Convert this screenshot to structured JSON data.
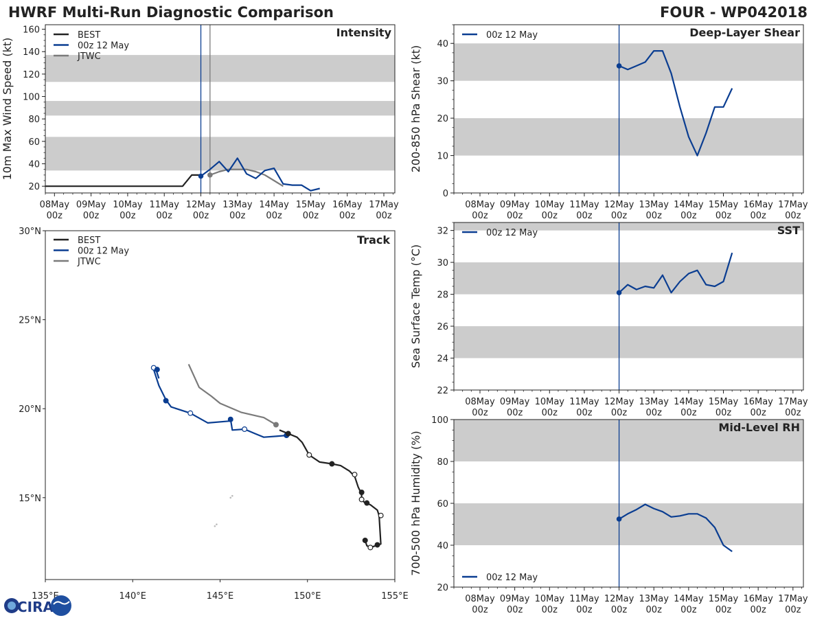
{
  "header": {
    "title": "HWRF Multi-Run Diagnostic Comparison",
    "storm": "FOUR - WP042018"
  },
  "colors": {
    "best": "#222222",
    "run": "#0a3d91",
    "jtwc": "#7a7a7a",
    "band": "#cccccc",
    "land": "#bbbbbb"
  },
  "time_axis": {
    "ticks": [
      {
        "day": "08May",
        "hour": "00z"
      },
      {
        "day": "09May",
        "hour": "00z"
      },
      {
        "day": "10May",
        "hour": "00z"
      },
      {
        "day": "11May",
        "hour": "00z"
      },
      {
        "day": "12May",
        "hour": "00z"
      },
      {
        "day": "13May",
        "hour": "00z"
      },
      {
        "day": "14May",
        "hour": "00z"
      },
      {
        "day": "15May",
        "hour": "00z"
      },
      {
        "day": "16May",
        "hour": "00z"
      },
      {
        "day": "17May",
        "hour": "00z"
      }
    ]
  },
  "legend_labels": {
    "best": "BEST",
    "run": "00z 12 May",
    "jtwc": "JTWC"
  },
  "logo": {
    "text": "CIRA"
  },
  "chart_data": [
    {
      "id": "intensity",
      "type": "line",
      "title": "Intensity",
      "ylabel": "10m Max Wind Speed (kt)",
      "xlabel": "",
      "xlim": [
        -0.25,
        9.3
      ],
      "ylim": [
        14,
        164
      ],
      "yticks": [
        20,
        40,
        60,
        80,
        100,
        120,
        140,
        160
      ],
      "bands": [
        [
          34,
          64
        ],
        [
          83,
          96
        ],
        [
          113,
          137
        ]
      ],
      "vlines": [
        {
          "x": 4.0,
          "series": "run"
        },
        {
          "x": 4.25,
          "series": "jtwc"
        }
      ],
      "legend": [
        "best",
        "run",
        "jtwc"
      ],
      "series": [
        {
          "name": "BEST",
          "key": "best",
          "x": [
            -0.25,
            0,
            0.25,
            0.5,
            0.75,
            1,
            1.25,
            1.5,
            1.75,
            2,
            2.25,
            2.5,
            2.75,
            3,
            3.25,
            3.5,
            3.75,
            4.0
          ],
          "y": [
            20,
            20,
            20,
            20,
            20,
            20,
            20,
            20,
            20,
            20,
            20,
            20,
            20,
            20,
            20,
            20,
            30,
            30
          ]
        },
        {
          "name": "JTWC",
          "key": "jtwc",
          "x": [
            4.25,
            4.5,
            4.75,
            5.0,
            5.25,
            5.5,
            5.75,
            6.0,
            6.25
          ],
          "y": [
            30,
            33,
            35,
            35,
            35,
            33,
            30,
            25,
            20
          ]
        },
        {
          "name": "00z 12 May",
          "key": "run",
          "x": [
            4.0,
            4.25,
            4.5,
            4.75,
            5.0,
            5.25,
            5.5,
            5.75,
            6.0,
            6.25,
            6.5,
            6.75,
            7.0,
            7.25
          ],
          "y": [
            29,
            35,
            42,
            33,
            45,
            31,
            27,
            34,
            36,
            22,
            21,
            21,
            16,
            18
          ]
        }
      ]
    },
    {
      "id": "shear",
      "type": "line",
      "title": "Deep-Layer Shear",
      "ylabel": "200-850 hPa Shear (kt)",
      "xlabel": "",
      "xlim": [
        -0.75,
        9.3
      ],
      "ylim": [
        0,
        45
      ],
      "yticks": [
        0,
        10,
        20,
        30,
        40
      ],
      "bands": [
        [
          10,
          20
        ],
        [
          30,
          40
        ]
      ],
      "vlines": [
        {
          "x": 4.0,
          "series": "run"
        }
      ],
      "legend": [
        "run"
      ],
      "series": [
        {
          "name": "00z 12 May",
          "key": "run",
          "x": [
            4.0,
            4.25,
            4.5,
            4.75,
            5.0,
            5.25,
            5.5,
            5.75,
            6.0,
            6.25,
            6.5,
            6.75,
            7.0,
            7.25
          ],
          "y": [
            34,
            33,
            34,
            35,
            38,
            38,
            32,
            23,
            15,
            10,
            16,
            23,
            23,
            28
          ]
        }
      ]
    },
    {
      "id": "sst",
      "type": "line",
      "title": "SST",
      "ylabel": "Sea Surface Temp (°C)",
      "xlabel": "",
      "xlim": [
        -0.75,
        9.3
      ],
      "ylim": [
        22,
        32.5
      ],
      "yticks": [
        22,
        24,
        26,
        28,
        30,
        32
      ],
      "bands": [
        [
          24,
          26
        ],
        [
          28,
          30
        ],
        [
          32,
          32.5
        ]
      ],
      "vlines": [
        {
          "x": 4.0,
          "series": "run"
        }
      ],
      "legend": [
        "run"
      ],
      "series": [
        {
          "name": "00z 12 May",
          "key": "run",
          "x": [
            4.0,
            4.25,
            4.5,
            4.75,
            5.0,
            5.25,
            5.5,
            5.75,
            6.0,
            6.25,
            6.5,
            6.75,
            7.0,
            7.25
          ],
          "y": [
            28.1,
            28.6,
            28.3,
            28.5,
            28.4,
            29.2,
            28.1,
            28.8,
            29.3,
            29.5,
            28.6,
            28.5,
            28.8,
            30.6
          ]
        }
      ]
    },
    {
      "id": "rh",
      "type": "line",
      "title": "Mid-Level RH",
      "ylabel": "700-500 hPa Humidity (%)",
      "xlabel": "",
      "xlim": [
        -0.75,
        9.3
      ],
      "ylim": [
        20,
        100
      ],
      "yticks": [
        20,
        40,
        60,
        80,
        100
      ],
      "bands": [
        [
          40,
          60
        ],
        [
          80,
          100
        ]
      ],
      "vlines": [
        {
          "x": 4.0,
          "series": "run"
        }
      ],
      "legend": [
        "run"
      ],
      "legend_position": "bottom-left",
      "series": [
        {
          "name": "00z 12 May",
          "key": "run",
          "x": [
            4.0,
            4.25,
            4.5,
            4.75,
            5.0,
            5.25,
            5.5,
            5.75,
            6.0,
            6.25,
            6.5,
            6.75,
            7.0,
            7.25
          ],
          "y": [
            52.5,
            55,
            57,
            59.5,
            57.5,
            56,
            53.5,
            54,
            55,
            55,
            53,
            48.5,
            40,
            37
          ]
        }
      ]
    },
    {
      "id": "track",
      "type": "scatter",
      "title": "Track",
      "xlabel": "",
      "ylabel": "",
      "xlim": [
        135,
        155
      ],
      "ylim": [
        10.4,
        30
      ],
      "xticks": [
        135,
        140,
        145,
        150,
        155
      ],
      "xtick_labels": [
        "135°E",
        "140°E",
        "145°E",
        "150°E",
        "155°E"
      ],
      "yticks": [
        15,
        20,
        25,
        30
      ],
      "ytick_labels": [
        "15°N",
        "20°N",
        "25°N",
        "30°N"
      ],
      "legend": [
        "best",
        "run",
        "jtwc"
      ],
      "series": [
        {
          "name": "BEST",
          "key": "best",
          "lon": [
            153.3,
            153.4,
            153.6,
            153.9,
            154.2,
            154.1,
            154.0,
            153.6,
            153.3,
            153.1,
            153.1,
            152.9,
            152.7,
            152.4,
            151.9,
            151.4,
            150.7,
            150.1,
            149.7,
            149.4,
            148.9,
            148.4
          ],
          "lat": [
            12.6,
            12.3,
            12.2,
            12.3,
            12.4,
            14.0,
            14.3,
            14.6,
            14.7,
            14.9,
            15.2,
            15.6,
            16.2,
            16.5,
            16.8,
            16.9,
            17.0,
            17.4,
            18.1,
            18.4,
            18.6,
            18.8
          ],
          "markers": [
            {
              "lon": 153.3,
              "lat": 12.6,
              "filled": true
            },
            {
              "lon": 153.6,
              "lat": 12.2,
              "filled": false
            },
            {
              "lon": 154.0,
              "lat": 12.35,
              "filled": true
            },
            {
              "lon": 154.2,
              "lat": 14.0,
              "filled": false
            },
            {
              "lon": 153.4,
              "lat": 14.7,
              "filled": true
            },
            {
              "lon": 153.1,
              "lat": 14.9,
              "filled": false
            },
            {
              "lon": 153.1,
              "lat": 15.3,
              "filled": true
            },
            {
              "lon": 152.7,
              "lat": 16.3,
              "filled": false
            },
            {
              "lon": 151.4,
              "lat": 16.9,
              "filled": true
            },
            {
              "lon": 150.1,
              "lat": 17.4,
              "filled": false
            },
            {
              "lon": 148.9,
              "lat": 18.6,
              "filled": true
            }
          ]
        },
        {
          "name": "00z 12 May",
          "key": "run",
          "lon": [
            148.8,
            148.2,
            147.5,
            147.0,
            146.4,
            145.7,
            145.6,
            145.5,
            144.3,
            143.3,
            142.2,
            141.9,
            141.5,
            141.2,
            141.3,
            141.5
          ],
          "lat": [
            18.5,
            18.45,
            18.4,
            18.6,
            18.85,
            18.8,
            19.4,
            19.3,
            19.2,
            19.75,
            20.1,
            20.5,
            21.3,
            22.2,
            22.3,
            21.7
          ],
          "markers": [
            {
              "lon": 148.8,
              "lat": 18.5,
              "filled": true
            },
            {
              "lon": 146.4,
              "lat": 18.85,
              "filled": false
            },
            {
              "lon": 145.6,
              "lat": 19.4,
              "filled": true
            },
            {
              "lon": 143.3,
              "lat": 19.75,
              "filled": false
            },
            {
              "lon": 141.9,
              "lat": 20.45,
              "filled": true
            },
            {
              "lon": 141.2,
              "lat": 22.3,
              "filled": false
            },
            {
              "lon": 141.4,
              "lat": 22.2,
              "filled": true
            }
          ]
        },
        {
          "name": "JTWC",
          "key": "jtwc",
          "lon": [
            148.2,
            147.5,
            146.2,
            145.0,
            144.5,
            143.8,
            143.2
          ],
          "lat": [
            19.1,
            19.5,
            19.8,
            20.3,
            20.7,
            21.2,
            22.5
          ],
          "markers": [
            {
              "lon": 148.2,
              "lat": 19.1,
              "filled": true
            }
          ]
        }
      ],
      "islands": [
        {
          "lon": 145.7,
          "lat": 15.1
        },
        {
          "lon": 145.6,
          "lat": 15.0
        },
        {
          "lon": 144.8,
          "lat": 13.5
        },
        {
          "lon": 144.7,
          "lat": 13.4
        }
      ]
    }
  ]
}
